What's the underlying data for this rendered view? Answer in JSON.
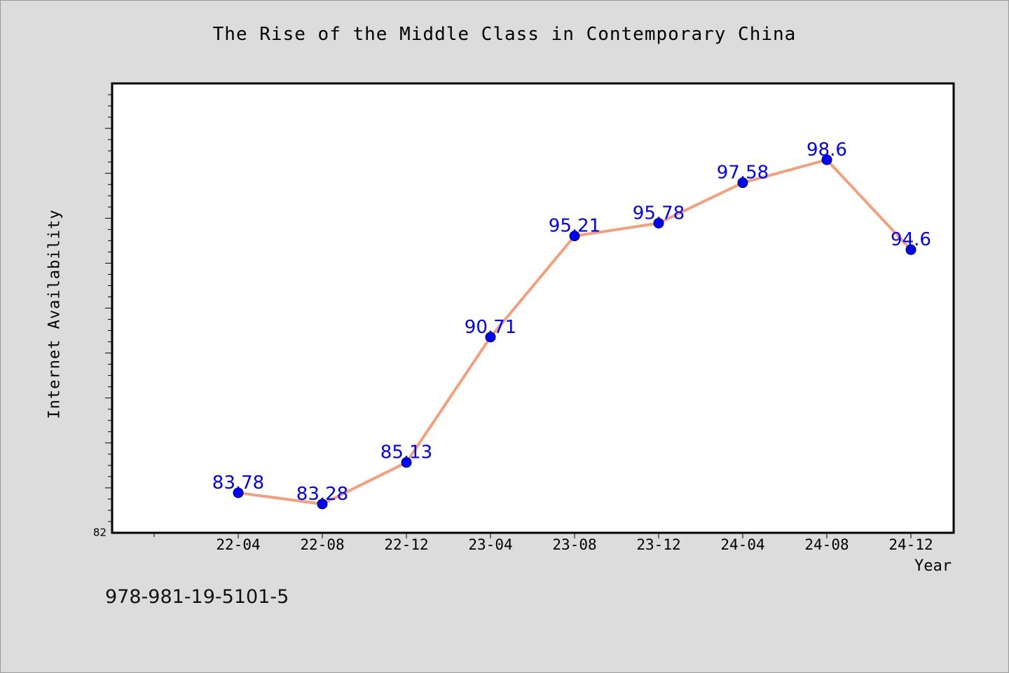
{
  "chart_data": {
    "type": "line",
    "title": "The Rise of the Middle Class in Contemporary China",
    "xlabel": "Year",
    "ylabel": "Internet Availability",
    "categories": [
      "22-04",
      "22-08",
      "22-12",
      "23-04",
      "23-08",
      "23-12",
      "24-04",
      "24-08",
      "24-12"
    ],
    "values": [
      83.78,
      83.28,
      85.13,
      90.71,
      95.21,
      95.78,
      97.58,
      98.6,
      94.6
    ],
    "value_labels": [
      "83.78",
      "83.28",
      "85.13",
      "90.71",
      "95.21",
      "95.78",
      "97.58",
      "98.6",
      "94.6"
    ],
    "ylim": [
      82,
      102
    ],
    "y_tick_labels": [
      "82"
    ],
    "grid": false,
    "line_color": "#f4a07c",
    "marker_color": "#0000ff",
    "label_color": "#0000ff"
  },
  "footer": {
    "isbn": "978-981-19-5101-5"
  }
}
